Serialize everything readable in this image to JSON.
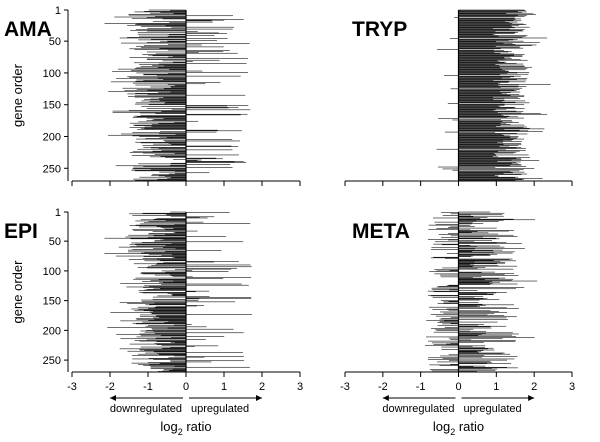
{
  "chart_data": {
    "type": "bar",
    "orientation": "horizontal",
    "shared": {
      "ylabel": "gene order",
      "xlabel_main": "log",
      "xlabel_sub": "2",
      "xlabel_tail": " ratio",
      "downregulated": "downregulated",
      "upregulated": "upregulated",
      "xlim": [
        -3,
        3
      ],
      "xticks": [
        -3,
        -2,
        -1,
        0,
        1,
        2,
        3
      ],
      "yticks": [
        1,
        50,
        100,
        150,
        200,
        250
      ],
      "ylim": [
        1,
        270
      ],
      "n_genes": 270,
      "bar_color": "#111111"
    },
    "panels": [
      {
        "title": "AMA",
        "trend": "down",
        "summary": {
          "median_log2_ratio": -0.9,
          "min": -2.2,
          "max": 1.7
        }
      },
      {
        "title": "TRYP",
        "trend": "up",
        "summary": {
          "median_log2_ratio": 1.6,
          "min": -0.6,
          "max": 2.7
        }
      },
      {
        "title": "EPI",
        "trend": "down",
        "summary": {
          "median_log2_ratio": -0.9,
          "min": -2.1,
          "max": 1.6
        }
      },
      {
        "title": "META",
        "trend": "mixed",
        "summary": {
          "median_log2_ratio": 0.7,
          "min": -0.9,
          "max": 2.1
        }
      }
    ]
  }
}
